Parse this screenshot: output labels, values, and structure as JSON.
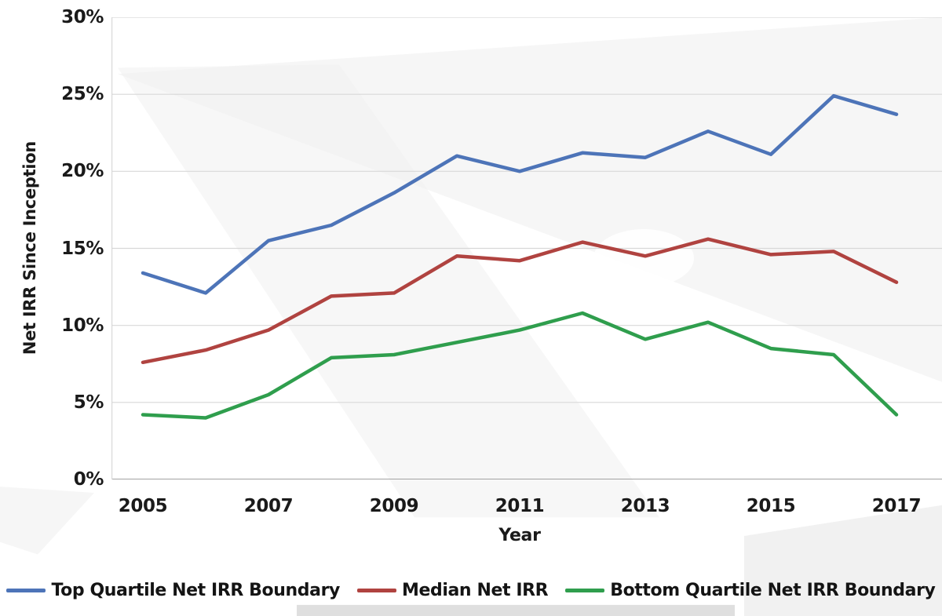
{
  "chart_data": {
    "type": "line",
    "title": "",
    "xlabel": "Year",
    "ylabel": "Net IRR Since Inception",
    "x": [
      2005,
      2006,
      2007,
      2008,
      2009,
      2010,
      2011,
      2012,
      2013,
      2014,
      2015,
      2016,
      2017
    ],
    "x_tick_labels": [
      "2005",
      "2007",
      "2009",
      "2011",
      "2013",
      "2015",
      "2017"
    ],
    "y_tick_labels_top_to_bottom": [
      "30%",
      "25%",
      "20%",
      "15%",
      "10%",
      "5%",
      "0%"
    ],
    "ylim": [
      0,
      30
    ],
    "grid": true,
    "legend_position": "bottom",
    "series": [
      {
        "name": "Top Quartile Net IRR Boundary",
        "color": "#4d74b8",
        "values": [
          13.4,
          12.1,
          15.5,
          16.5,
          18.6,
          21.0,
          20.0,
          21.2,
          20.9,
          22.6,
          21.1,
          24.9,
          23.7
        ]
      },
      {
        "name": "Median Net IRR",
        "color": "#b04340",
        "values": [
          7.6,
          8.4,
          9.7,
          11.9,
          12.1,
          14.5,
          14.2,
          15.4,
          14.5,
          15.6,
          14.6,
          14.8,
          12.8
        ]
      },
      {
        "name": "Bottom Quartile Net IRR Boundary",
        "color": "#2f9e4d",
        "values": [
          4.2,
          4.0,
          5.5,
          7.9,
          8.1,
          8.9,
          9.7,
          10.8,
          9.1,
          10.2,
          8.5,
          8.1,
          4.2
        ]
      }
    ],
    "style": {
      "gridline_color": "#d8d8d8",
      "axis_line_color": "#a3a3a3",
      "line_width": 4.5
    }
  }
}
